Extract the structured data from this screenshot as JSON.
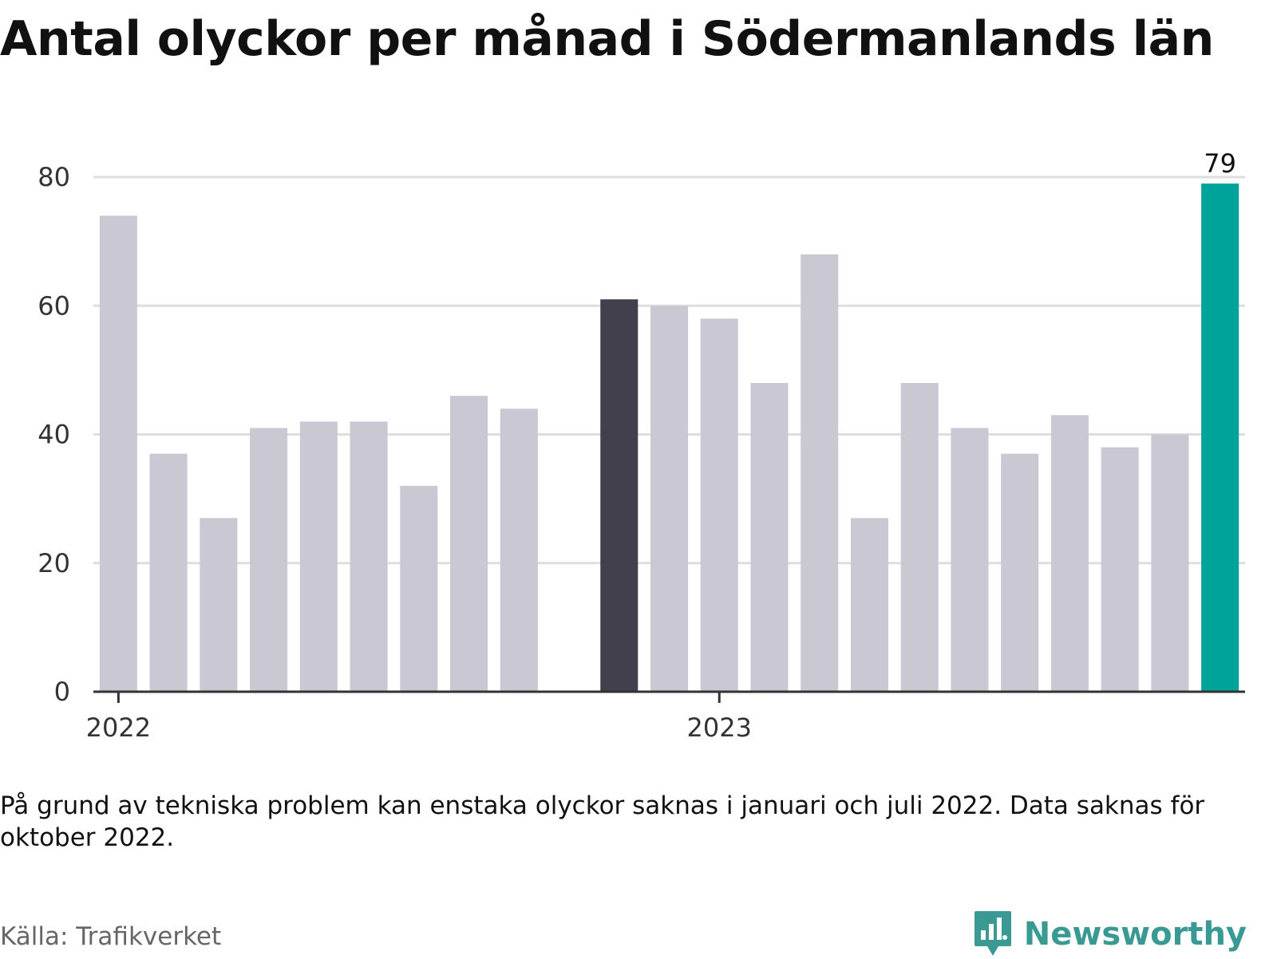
{
  "title": "Antal olyckor per månad i Södermanlands län",
  "note": "På grund av tekniska problem kan enstaka olyckor saknas i januari och juli 2022. Data saknas för oktober 2022.",
  "source": "Källa: Trafikverket",
  "logo_text": "Newsworthy",
  "colors": {
    "default_bar": "#c9c8d3",
    "highlight_prev_year": "#42404d",
    "highlight_latest": "#00a399",
    "grid": "#dedede",
    "axis": "#333333"
  },
  "chart_data": {
    "type": "bar",
    "title": "Antal olyckor per månad i Södermanlands län",
    "xlabel": "",
    "ylabel": "",
    "ylim": [
      0,
      80
    ],
    "yticks": [
      0,
      20,
      40,
      60,
      80
    ],
    "xticks": [
      {
        "label": "2022",
        "at": "2022-01"
      },
      {
        "label": "2023",
        "at": "2023-01"
      }
    ],
    "categories": [
      "2022-01",
      "2022-02",
      "2022-03",
      "2022-04",
      "2022-05",
      "2022-06",
      "2022-07",
      "2022-08",
      "2022-09",
      "2022-10",
      "2022-11",
      "2022-12",
      "2023-01",
      "2023-02",
      "2023-03",
      "2023-04",
      "2023-05",
      "2023-06",
      "2023-07",
      "2023-08",
      "2023-09",
      "2023-10",
      "2023-11"
    ],
    "values": [
      74,
      37,
      27,
      41,
      42,
      42,
      32,
      46,
      44,
      null,
      61,
      60,
      58,
      48,
      68,
      27,
      48,
      41,
      37,
      43,
      38,
      40,
      79
    ],
    "highlight": {
      "2022-11": "highlight_prev_year",
      "2023-11": "highlight_latest"
    },
    "data_labels": {
      "2023-11": "79"
    },
    "grid": true,
    "legend": "none"
  }
}
